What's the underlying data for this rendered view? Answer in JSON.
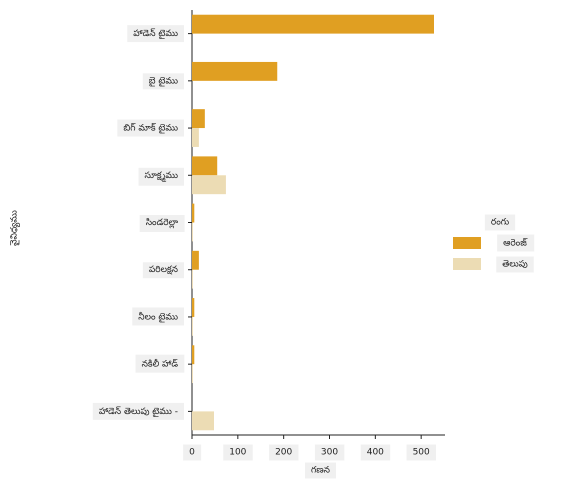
{
  "chart_data": {
    "type": "bar",
    "orientation": "horizontal",
    "categories": [
      "హాడెన్ టైము",
      "బై టైము",
      "బిగ్ మాక్ టైము",
      "సూక్ష్మము",
      "సిండరెల్లా",
      "పరిలక్షన",
      "నీలం టైము",
      "నకిలీ హాడ్",
      "హాడెన్ తెలుపు టైము -"
    ],
    "series": [
      {
        "name": "ఆరెంజ్",
        "color": "#e09f22",
        "values": [
          528,
          186,
          28,
          55,
          5,
          15,
          5,
          5,
          0
        ]
      },
      {
        "name": "తెలుపు",
        "color": "#ecdcb4",
        "values": [
          0,
          0,
          15,
          74,
          2,
          2,
          2,
          2,
          48
        ]
      }
    ],
    "x_label": "గణన",
    "y_label": "వైవిధ్యము",
    "legend_title": "రంగు",
    "xlim": [
      0,
      552
    ],
    "xticks": [
      0,
      100,
      200,
      300,
      400,
      500
    ],
    "legend": "right"
  }
}
